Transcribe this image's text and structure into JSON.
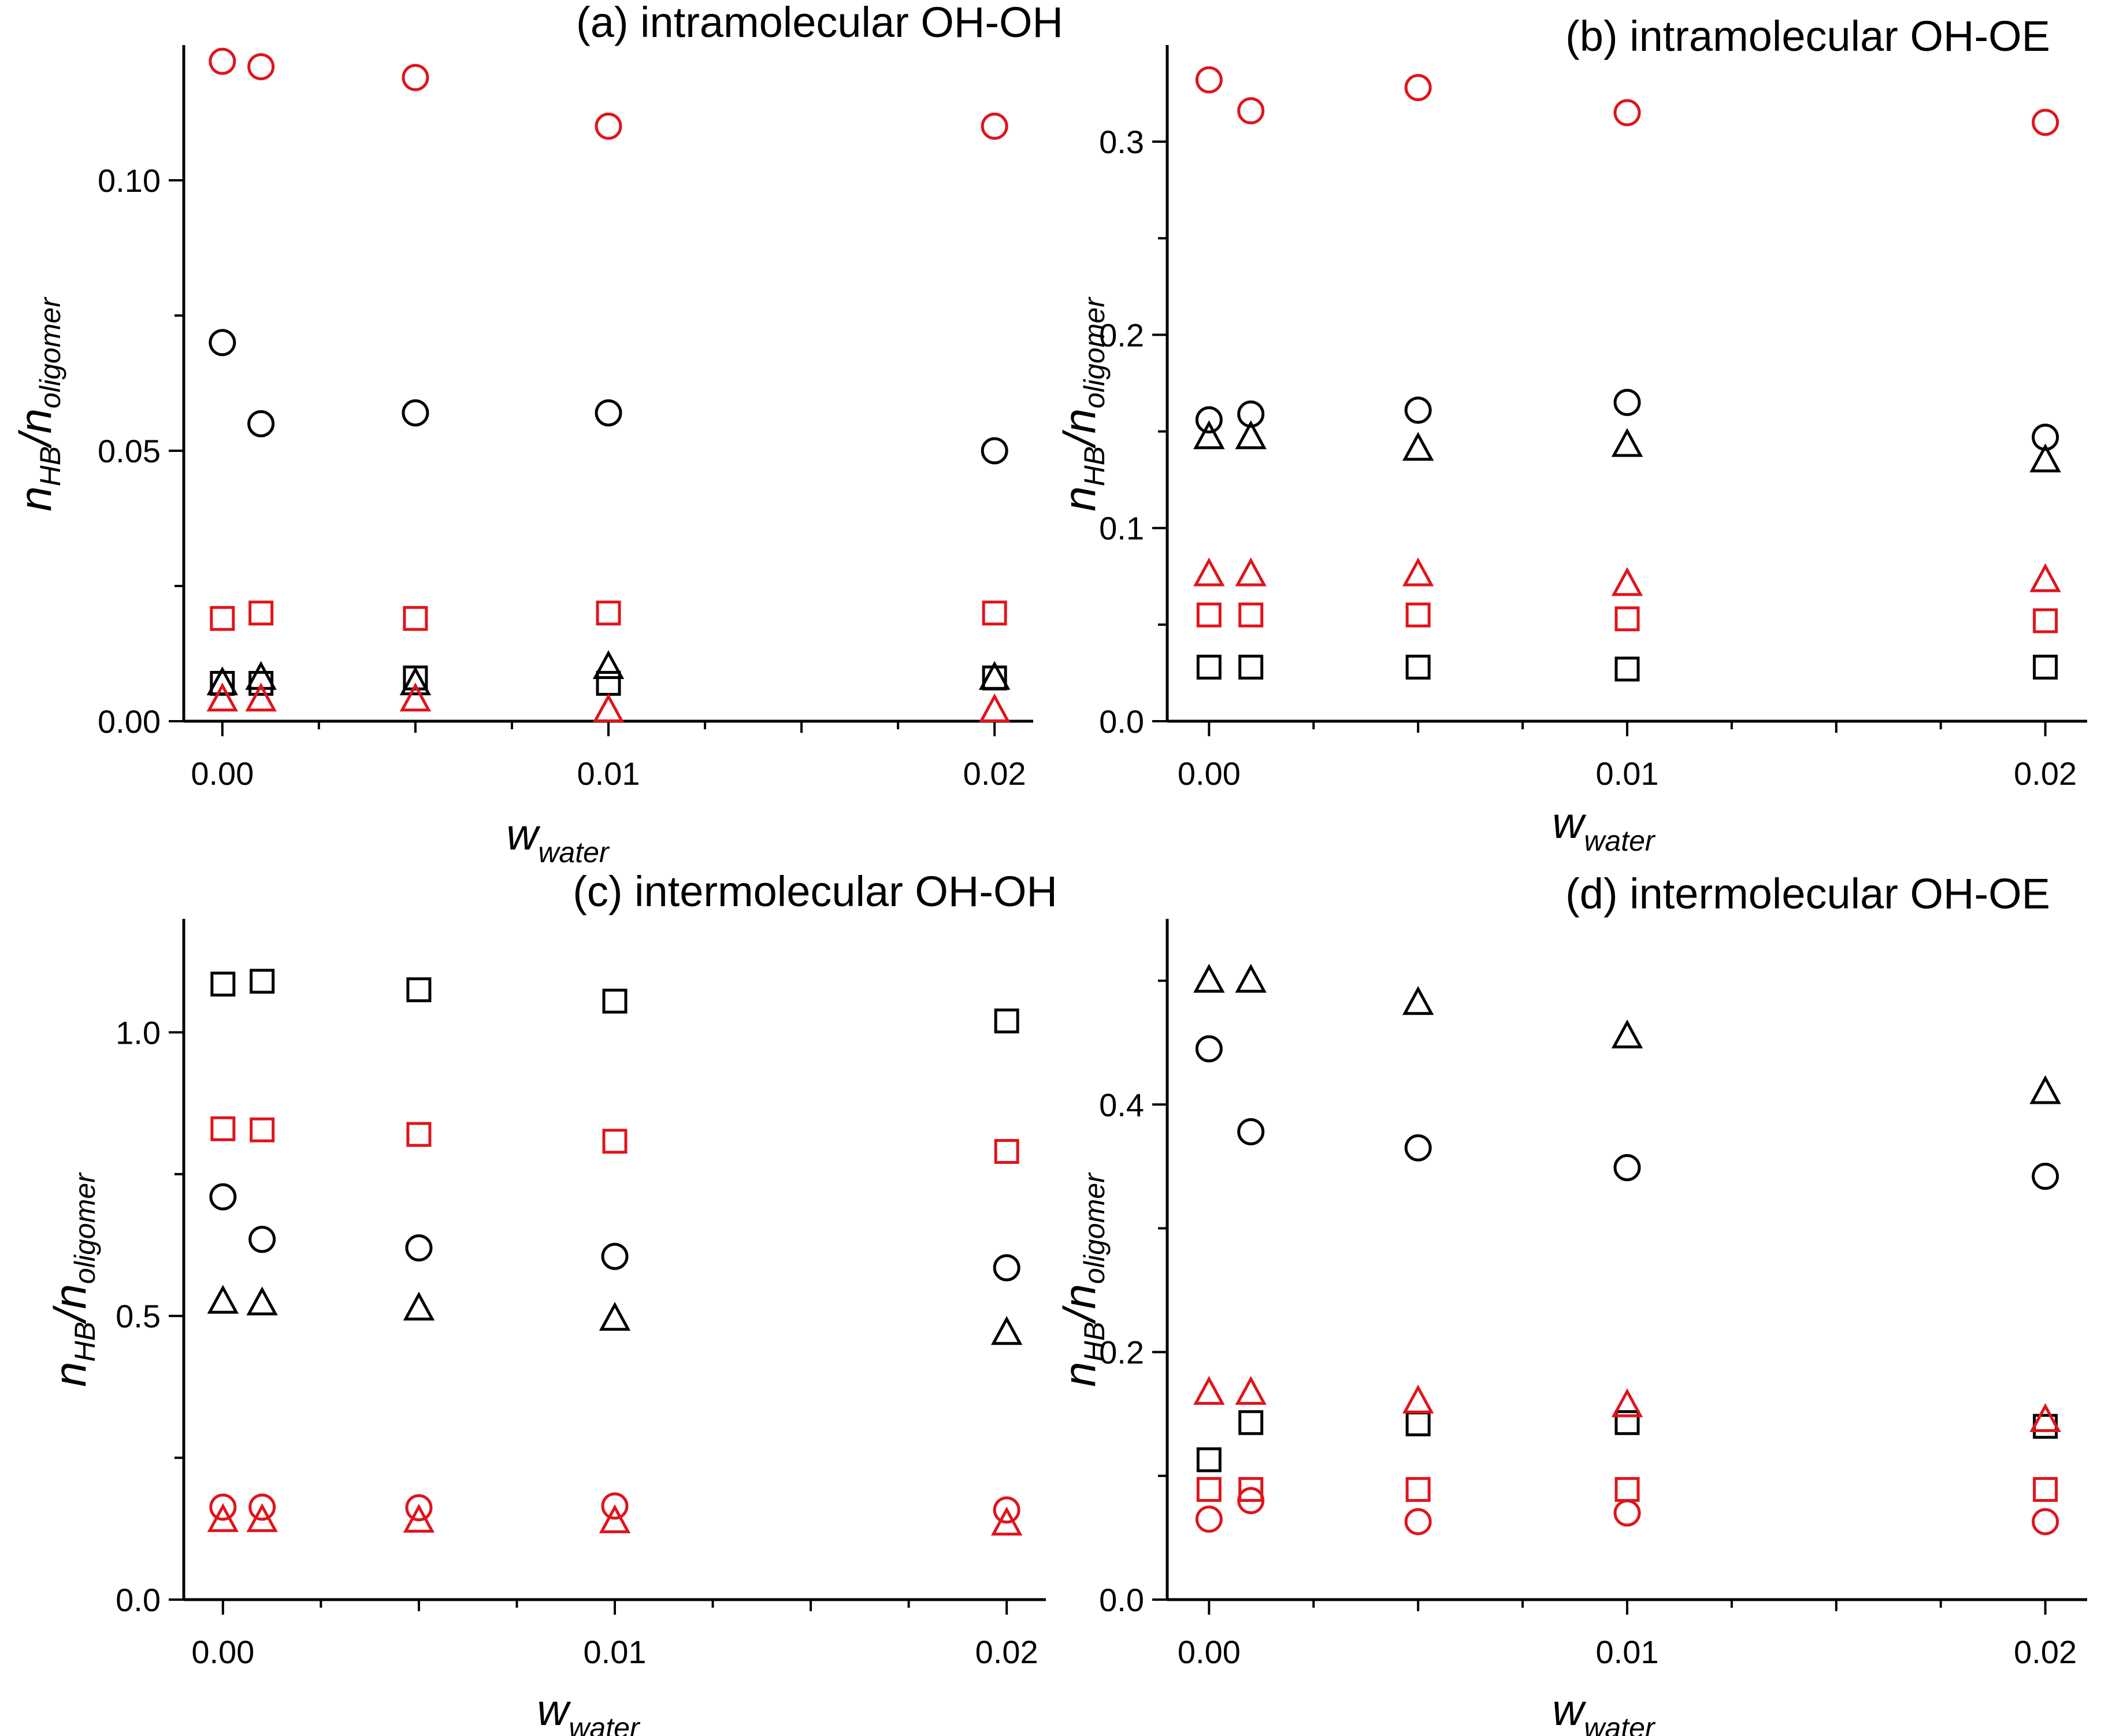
{
  "figure": {
    "panels": [
      "a",
      "b",
      "c",
      "d"
    ]
  },
  "colors": {
    "black": "#000000",
    "red": "#e0141a"
  },
  "chart_data": [
    {
      "id": "a",
      "type": "scatter",
      "title": "(a) intramolecular OH-OH",
      "ylabel": "n_HB/n_oligomer",
      "ylabel_main": "n",
      "ylabel_sub1": "HB",
      "ylabel_mid": "/n",
      "ylabel_sub2": "oligomer",
      "xlabel_main": "w",
      "xlabel_sub": "water",
      "xlim": [
        -0.001,
        0.021
      ],
      "ylim": [
        0,
        0.125
      ],
      "xticks": [
        0.0,
        0.01,
        0.02
      ],
      "xtick_labels": [
        "0.00",
        "0.01",
        "0.02"
      ],
      "yticks": [
        0.0,
        0.05,
        0.1
      ],
      "ytick_labels": [
        "0.00",
        "0.05",
        "0.10"
      ],
      "x": [
        0.0,
        0.001,
        0.005,
        0.01,
        0.02
      ],
      "series": [
        {
          "marker": "circle",
          "color": "black",
          "values": [
            0.07,
            0.055,
            0.057,
            0.057,
            0.05
          ]
        },
        {
          "marker": "square",
          "color": "black",
          "values": [
            0.007,
            0.007,
            0.008,
            0.007,
            0.008
          ]
        },
        {
          "marker": "triangle",
          "color": "black",
          "values": [
            0.007,
            0.008,
            0.007,
            0.01,
            0.008
          ]
        },
        {
          "marker": "circle",
          "color": "red",
          "values": [
            0.122,
            0.121,
            0.119,
            0.11,
            0.11
          ]
        },
        {
          "marker": "square",
          "color": "red",
          "values": [
            0.019,
            0.02,
            0.019,
            0.02,
            0.02
          ]
        },
        {
          "marker": "triangle",
          "color": "red",
          "values": [
            0.004,
            0.004,
            0.004,
            0.002,
            0.002
          ]
        }
      ]
    },
    {
      "id": "b",
      "type": "scatter",
      "title": "(b) intramolecular OH-OE",
      "ylabel": "n_HB/n_oligomer",
      "ylabel_main": "n",
      "ylabel_sub1": "HB",
      "ylabel_mid": "/n",
      "ylabel_sub2": "oligomer",
      "xlabel_main": "w",
      "xlabel_sub": "water",
      "xlim": [
        -0.001,
        0.021
      ],
      "ylim": [
        0,
        0.35
      ],
      "xticks": [
        0.0,
        0.01,
        0.02
      ],
      "xtick_labels": [
        "0.00",
        "0.01",
        "0.02"
      ],
      "yticks": [
        0.0,
        0.1,
        0.2,
        0.3
      ],
      "ytick_labels": [
        "0.0",
        "0.1",
        "0.2",
        "0.3"
      ],
      "x": [
        0.0,
        0.001,
        0.005,
        0.01,
        0.02
      ],
      "series": [
        {
          "marker": "circle",
          "color": "black",
          "values": [
            0.156,
            0.159,
            0.161,
            0.165,
            0.147
          ]
        },
        {
          "marker": "square",
          "color": "black",
          "values": [
            0.028,
            0.028,
            0.028,
            0.027,
            0.028
          ]
        },
        {
          "marker": "triangle",
          "color": "black",
          "values": [
            0.147,
            0.147,
            0.141,
            0.143,
            0.135
          ]
        },
        {
          "marker": "circle",
          "color": "red",
          "values": [
            0.332,
            0.316,
            0.328,
            0.315,
            0.31
          ]
        },
        {
          "marker": "square",
          "color": "red",
          "values": [
            0.055,
            0.055,
            0.055,
            0.053,
            0.052
          ]
        },
        {
          "marker": "triangle",
          "color": "red",
          "values": [
            0.076,
            0.076,
            0.076,
            0.071,
            0.073
          ]
        }
      ]
    },
    {
      "id": "c",
      "type": "scatter",
      "title": "(c) intermolecular OH-OH",
      "ylabel": "n_HB/n_oligomer",
      "ylabel_main": "n",
      "ylabel_sub1": "HB",
      "ylabel_mid": "/n",
      "ylabel_sub2": "oligomer",
      "xlabel_main": "w",
      "xlabel_sub": "water",
      "xlim": [
        -0.001,
        0.021
      ],
      "ylim": [
        0,
        1.2
      ],
      "xticks": [
        0.0,
        0.01,
        0.02
      ],
      "xtick_labels": [
        "0.00",
        "0.01",
        "0.02"
      ],
      "yticks": [
        0.0,
        0.5,
        1.0
      ],
      "ytick_labels": [
        "0.0",
        "0.5",
        "1.0"
      ],
      "x": [
        0.0,
        0.001,
        0.005,
        0.01,
        0.02
      ],
      "series": [
        {
          "marker": "circle",
          "color": "black",
          "values": [
            0.71,
            0.635,
            0.62,
            0.605,
            0.585
          ]
        },
        {
          "marker": "square",
          "color": "black",
          "values": [
            1.085,
            1.09,
            1.075,
            1.055,
            1.02
          ]
        },
        {
          "marker": "triangle",
          "color": "black",
          "values": [
            0.525,
            0.522,
            0.513,
            0.495,
            0.47
          ]
        },
        {
          "marker": "circle",
          "color": "red",
          "values": [
            0.163,
            0.163,
            0.162,
            0.165,
            0.158
          ]
        },
        {
          "marker": "square",
          "color": "red",
          "values": [
            0.83,
            0.828,
            0.82,
            0.808,
            0.79
          ]
        },
        {
          "marker": "triangle",
          "color": "red",
          "values": [
            0.14,
            0.14,
            0.139,
            0.138,
            0.134
          ]
        }
      ]
    },
    {
      "id": "d",
      "type": "scatter",
      "title": "(d) intermolecular OH-OE",
      "ylabel": "n_HB/n_oligomer",
      "ylabel_main": "n",
      "ylabel_sub1": "HB",
      "ylabel_mid": "/n",
      "ylabel_sub2": "oligomer",
      "xlabel_main": "w",
      "xlabel_sub": "water",
      "xlim": [
        -0.001,
        0.021
      ],
      "ylim": [
        0,
        0.55
      ],
      "xticks": [
        0.0,
        0.01,
        0.02
      ],
      "xtick_labels": [
        "0.00",
        "0.01",
        "0.02"
      ],
      "yticks": [
        0.0,
        0.2,
        0.4
      ],
      "ytick_labels": [
        "0.0",
        "0.2",
        "0.4"
      ],
      "x": [
        0.0,
        0.001,
        0.005,
        0.01,
        0.02
      ],
      "series": [
        {
          "marker": "circle",
          "color": "black",
          "values": [
            0.445,
            0.378,
            0.365,
            0.349,
            0.342
          ]
        },
        {
          "marker": "square",
          "color": "black",
          "values": [
            0.113,
            0.143,
            0.142,
            0.143,
            0.14
          ]
        },
        {
          "marker": "triangle",
          "color": "black",
          "values": [
            0.5,
            0.5,
            0.482,
            0.455,
            0.41
          ]
        },
        {
          "marker": "circle",
          "color": "red",
          "values": [
            0.065,
            0.08,
            0.063,
            0.07,
            0.063
          ]
        },
        {
          "marker": "square",
          "color": "red",
          "values": [
            0.089,
            0.089,
            0.089,
            0.089,
            0.089
          ]
        },
        {
          "marker": "triangle",
          "color": "red",
          "values": [
            0.167,
            0.167,
            0.16,
            0.157,
            0.145
          ]
        }
      ]
    }
  ]
}
